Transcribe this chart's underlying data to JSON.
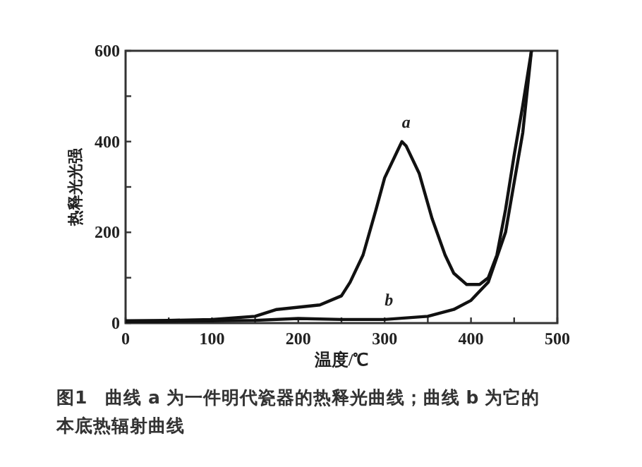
{
  "chart_data": {
    "type": "line",
    "xlabel": "温度/℃",
    "ylabel": "热释光光强",
    "xlim": [
      0,
      500
    ],
    "ylim": [
      0,
      600
    ],
    "xticks": [
      0,
      {
        "value": 50,
        "label": null
      },
      100,
      {
        "value": 150,
        "label": null
      },
      200,
      {
        "value": 250,
        "label": null
      },
      300,
      {
        "value": 350,
        "label": null
      },
      400,
      {
        "value": 450,
        "label": null
      },
      500
    ],
    "yticks": [
      0,
      {
        "value": 100,
        "label": null
      },
      200,
      {
        "value": 300,
        "label": null
      },
      400,
      {
        "value": 500,
        "label": null
      },
      600
    ],
    "grid": false,
    "marker": "none",
    "line_style": "solid",
    "series": [
      {
        "color": "#111111",
        "x": [
          0,
          50,
          100,
          150,
          175,
          200,
          225,
          250,
          260,
          275,
          290,
          300,
          315,
          320,
          325,
          340,
          355,
          370,
          380,
          395,
          410,
          420,
          430,
          440,
          450,
          460,
          470
        ],
        "values": [
          5,
          6,
          8,
          15,
          30,
          35,
          40,
          60,
          90,
          150,
          250,
          320,
          380,
          400,
          390,
          330,
          230,
          150,
          110,
          85,
          85,
          100,
          150,
          250,
          370,
          480,
          600
        ]
      },
      {
        "color": "#111111",
        "x": [
          0,
          50,
          100,
          150,
          200,
          250,
          300,
          350,
          380,
          400,
          420,
          440,
          460,
          470
        ],
        "values": [
          2,
          4,
          5,
          6,
          10,
          8,
          8,
          15,
          30,
          50,
          90,
          200,
          420,
          600
        ]
      }
    ],
    "annotations": [
      {
        "text": "a",
        "x": 320,
        "y": 400
      },
      {
        "text": "b",
        "x": 300,
        "y": 8
      },
      "图1　曲线 a 为一件明代瓷器的热释光曲线；曲线 b 为它的本底热辐射曲线"
    ]
  }
}
